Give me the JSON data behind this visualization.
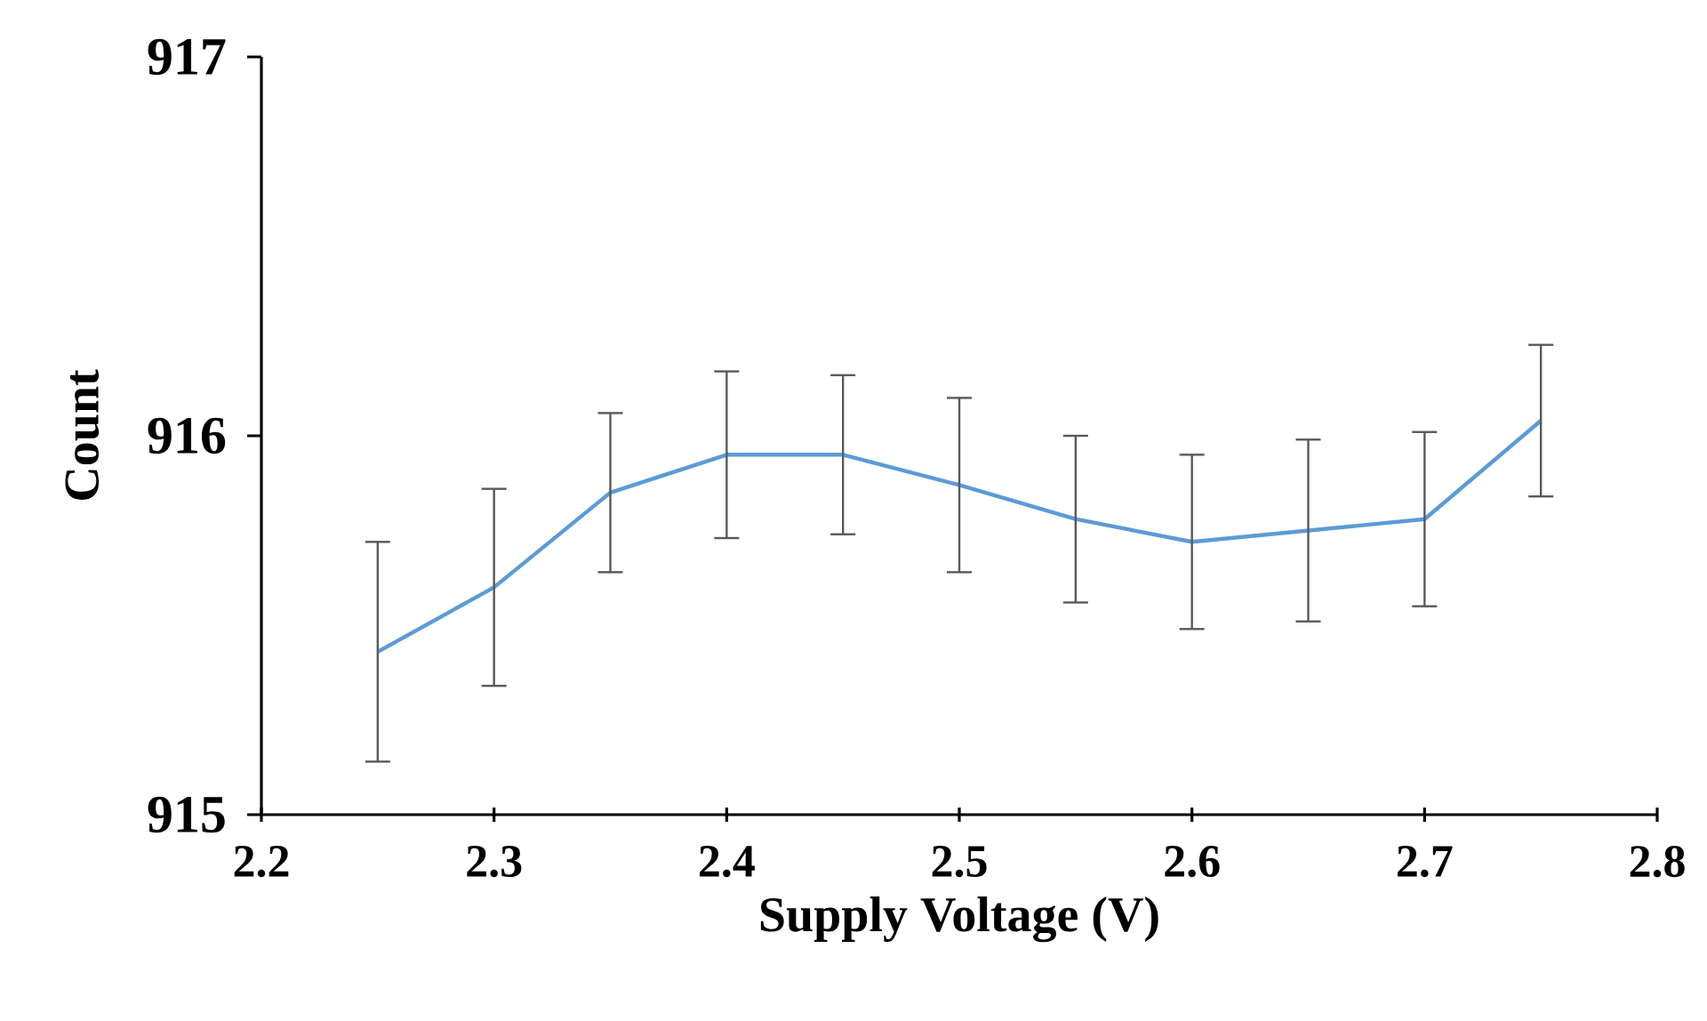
{
  "chart_data": {
    "type": "line",
    "xlabel": "Supply Voltage (V)",
    "ylabel": "Count",
    "x": [
      2.25,
      2.3,
      2.35,
      2.4,
      2.45,
      2.5,
      2.55,
      2.6,
      2.65,
      2.7,
      2.75
    ],
    "series": [
      {
        "color": "#5b9bd5",
        "values": [
          915.43,
          915.6,
          915.85,
          915.95,
          915.95,
          915.87,
          915.78,
          915.72,
          915.75,
          915.78,
          916.04
        ],
        "errors": [
          0.29,
          0.26,
          0.21,
          0.22,
          0.21,
          0.23,
          0.22,
          0.23,
          0.24,
          0.23,
          0.2
        ]
      }
    ],
    "xlim": [
      2.2,
      2.8
    ],
    "xticks": [
      2.2,
      2.3,
      2.4,
      2.5,
      2.6,
      2.7,
      2.8
    ],
    "ylim": [
      915,
      917
    ],
    "yticks": [
      915,
      916,
      917
    ],
    "grid": false,
    "marker": "none",
    "line_style": "solid"
  }
}
